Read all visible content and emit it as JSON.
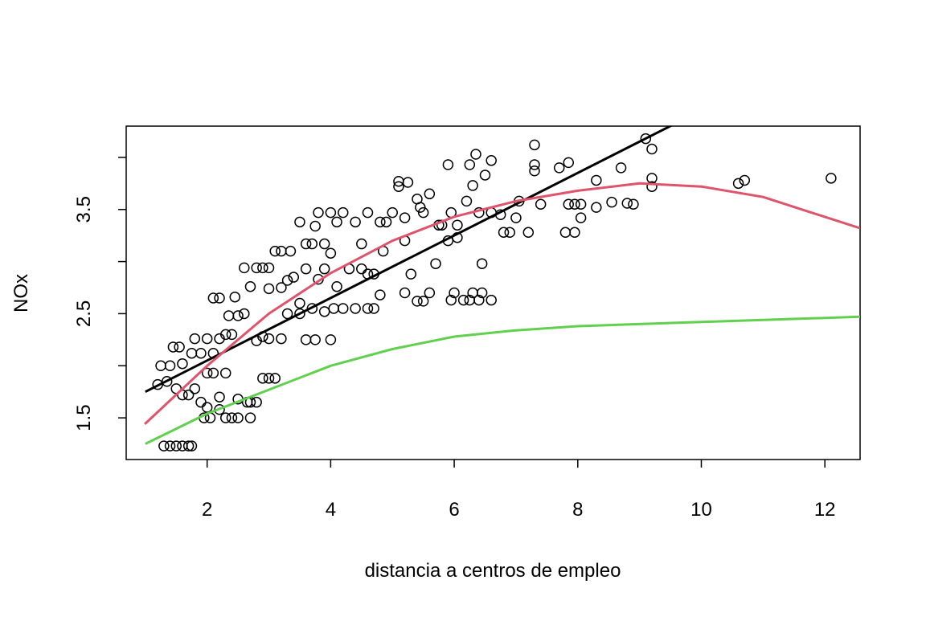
{
  "chart_data": {
    "type": "scatter",
    "x_label": "distancia a centros de empleo",
    "y_label": "NOx",
    "xlim": [
      0.69,
      12.57
    ],
    "ylim": [
      1.1,
      4.3
    ],
    "xticks": [
      2,
      4,
      6,
      8,
      10,
      12
    ],
    "yticks": [
      1.5,
      2.5,
      3.5
    ],
    "yticks_unlabeled": [
      2,
      3,
      4
    ],
    "series": [
      {
        "type": "scatter",
        "color": "#000000",
        "x": [
          1.3,
          1.4,
          1.5,
          1.6,
          1.7,
          1.75,
          1.2,
          1.35,
          1.5,
          1.6,
          1.7,
          1.8,
          1.9,
          2.0,
          1.25,
          1.4,
          1.45,
          1.55,
          1.6,
          1.75,
          1.8,
          1.9,
          2.0,
          2.1,
          2.2,
          2.3,
          2.4,
          2.1,
          2.2,
          2.35,
          2.45,
          2.5,
          2.6,
          2.7,
          2.8,
          2.9,
          2.6,
          3.0,
          3.1,
          3.2,
          3.35,
          3.0,
          3.2,
          3.3,
          3.4,
          3.5,
          3.3,
          2.9,
          2.8,
          3.0,
          3.2,
          2.9,
          3.0,
          3.1,
          2.5,
          2.65,
          2.7,
          2.8,
          2.2,
          2.3,
          2.4,
          2.5,
          2.7,
          1.95,
          2.05,
          2.2,
          2.3,
          2.1,
          2.0,
          3.5,
          3.6,
          3.7,
          3.75,
          3.8,
          3.9,
          4.0,
          4.0,
          4.1,
          4.2,
          4.4,
          4.5,
          4.6,
          4.8,
          4.9,
          4.05,
          3.9,
          4.2,
          4.4,
          4.6,
          4.7,
          3.7,
          3.6,
          3.75,
          4.0,
          3.5,
          4.1,
          4.3,
          4.5,
          4.6,
          4.7,
          4.8,
          3.9,
          3.6,
          3.8,
          5.0,
          5.1,
          5.1,
          5.25,
          5.2,
          5.4,
          5.45,
          5.5,
          5.6,
          5.75,
          5.8,
          5.9,
          5.9,
          5.95,
          6.05,
          6.05,
          6.2,
          6.25,
          6.3,
          6.35,
          6.4,
          6.5,
          6.6,
          6.6,
          6.75,
          6.8,
          6.9,
          7.0,
          7.05,
          7.2,
          7.3,
          7.3,
          7.3,
          7.4,
          7.7,
          7.85,
          7.8,
          7.85,
          7.95,
          7.95,
          8.05,
          8.05,
          8.3,
          8.3,
          8.55,
          8.7,
          8.8,
          8.9,
          9.1,
          9.2,
          9.2,
          9.2,
          10.6,
          10.7,
          12.1,
          5.2,
          5.4,
          5.5,
          5.6,
          5.7,
          5.3,
          5.95,
          6.0,
          6.15,
          6.25,
          6.3,
          6.4,
          6.45,
          6.45,
          6.6,
          4.85,
          5.2
        ],
        "values": [
          1.23,
          1.23,
          1.23,
          1.23,
          1.23,
          1.23,
          1.82,
          1.85,
          1.78,
          1.72,
          1.72,
          1.78,
          1.65,
          1.6,
          2.0,
          2.0,
          2.18,
          2.18,
          2.02,
          2.12,
          2.26,
          2.12,
          2.26,
          2.12,
          2.26,
          2.3,
          2.3,
          2.65,
          2.65,
          2.48,
          2.66,
          2.48,
          2.5,
          2.76,
          2.94,
          2.94,
          2.94,
          2.94,
          3.1,
          3.1,
          3.1,
          2.74,
          2.75,
          2.82,
          2.85,
          2.6,
          2.5,
          2.28,
          2.24,
          2.26,
          2.26,
          1.88,
          1.88,
          1.88,
          1.68,
          1.65,
          1.65,
          1.65,
          1.58,
          1.5,
          1.5,
          1.5,
          1.5,
          1.5,
          1.5,
          1.7,
          1.93,
          1.93,
          1.93,
          3.38,
          3.17,
          3.17,
          3.34,
          3.47,
          3.17,
          3.08,
          3.47,
          3.38,
          3.47,
          3.38,
          3.17,
          3.47,
          3.38,
          3.38,
          2.55,
          2.52,
          2.55,
          2.55,
          2.55,
          2.55,
          2.55,
          2.25,
          2.25,
          2.25,
          2.5,
          2.76,
          2.93,
          2.93,
          2.88,
          2.88,
          2.68,
          2.93,
          2.93,
          2.83,
          3.47,
          3.77,
          3.72,
          3.76,
          3.42,
          3.6,
          3.52,
          3.47,
          3.65,
          3.35,
          3.35,
          3.93,
          3.2,
          3.47,
          3.35,
          3.23,
          3.58,
          3.93,
          3.73,
          4.03,
          3.47,
          3.83,
          3.97,
          3.47,
          3.45,
          3.28,
          3.28,
          3.42,
          3.58,
          3.28,
          4.12,
          3.93,
          3.87,
          3.55,
          3.9,
          3.95,
          3.28,
          3.55,
          3.28,
          3.55,
          3.42,
          3.55,
          3.78,
          3.52,
          3.57,
          3.9,
          3.56,
          3.55,
          4.18,
          4.08,
          3.8,
          3.72,
          3.75,
          3.78,
          3.8,
          2.7,
          2.62,
          2.62,
          2.7,
          2.98,
          2.88,
          2.63,
          2.7,
          2.63,
          2.63,
          2.7,
          2.63,
          2.7,
          2.98,
          2.63,
          3.1,
          3.2
        ]
      },
      {
        "type": "line",
        "color": "#000000",
        "x": [
          1.0,
          12.13
        ],
        "values": [
          1.75,
          5.09
        ]
      },
      {
        "type": "line",
        "color": "#df536b",
        "x": [
          0.99,
          2,
          3,
          4,
          5,
          6,
          7,
          8,
          9,
          10,
          11,
          12.57
        ],
        "values": [
          1.44,
          2.0,
          2.5,
          2.89,
          3.2,
          3.43,
          3.58,
          3.68,
          3.75,
          3.72,
          3.62,
          3.32
        ]
      },
      {
        "type": "line",
        "color": "#61d04f",
        "x": [
          1,
          2,
          3,
          4,
          5,
          6,
          7,
          8,
          10,
          12.57
        ],
        "values": [
          1.25,
          1.54,
          1.77,
          2.0,
          2.16,
          2.28,
          2.34,
          2.38,
          2.42,
          2.47
        ]
      }
    ]
  }
}
